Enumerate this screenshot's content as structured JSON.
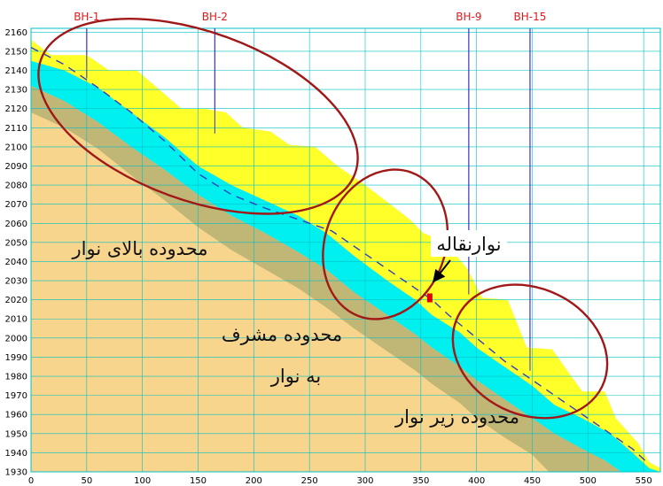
{
  "boreholes": [
    {
      "label": "BH-1",
      "x": 50
    },
    {
      "label": "BH-2",
      "x": 165
    },
    {
      "label": "BH-9",
      "x": 393
    },
    {
      "label": "BH-15",
      "x": 448
    }
  ],
  "axes": {
    "x_ticks": [
      "0",
      "50",
      "100",
      "150",
      "200",
      "250",
      "300",
      "350",
      "400",
      "450",
      "500",
      "550"
    ],
    "y_ticks": [
      "1930",
      "1940",
      "1950",
      "1960",
      "1970",
      "1980",
      "1990",
      "2000",
      "2010",
      "2020",
      "2030",
      "2040",
      "2050",
      "2060",
      "2070",
      "2080",
      "2090",
      "2100",
      "2110",
      "2120",
      "2130",
      "2140",
      "2150",
      "2160"
    ],
    "xlim": [
      0,
      565
    ],
    "ylim": [
      1930,
      2162
    ]
  },
  "labels": {
    "zone_above": "محدوده بالای نوار",
    "zone_overlook_1": "محدوده مشرف",
    "zone_overlook_2": "به نوار",
    "zone_below": "محدوده زیر نوار",
    "conveyor": "نوارنقاله"
  },
  "colors": {
    "ground": "#f8d58c",
    "rock": "#c0b676",
    "weathered": "#00f0f0",
    "fill": "#ffff2a",
    "ellipse": "#a01818",
    "profile": "#3040c0",
    "borehole": "#3b2fd6",
    "marker": "#e00000",
    "grid": "#00c0c8"
  },
  "profile": {
    "top_surface": [
      [
        0,
        2156
      ],
      [
        18,
        2148
      ],
      [
        50,
        2148
      ],
      [
        70,
        2140
      ],
      [
        95,
        2140
      ],
      [
        135,
        2120
      ],
      [
        155,
        2120
      ],
      [
        175,
        2118
      ],
      [
        190,
        2110
      ],
      [
        215,
        2108
      ],
      [
        232,
        2101
      ],
      [
        255,
        2100
      ],
      [
        275,
        2090
      ],
      [
        300,
        2080
      ],
      [
        318,
        2072
      ],
      [
        340,
        2062
      ],
      [
        352,
        2055
      ],
      [
        372,
        2050
      ],
      [
        392,
        2036
      ],
      [
        405,
        2021
      ],
      [
        428,
        2020
      ],
      [
        445,
        1995
      ],
      [
        468,
        1994
      ],
      [
        485,
        1980
      ],
      [
        495,
        1972
      ],
      [
        515,
        1972
      ],
      [
        525,
        1958
      ],
      [
        545,
        1945
      ],
      [
        555,
        1935
      ],
      [
        565,
        1932
      ]
    ],
    "fill_bottom": [
      [
        0,
        2145
      ],
      [
        30,
        2140
      ],
      [
        60,
        2131
      ],
      [
        90,
        2118
      ],
      [
        120,
        2105
      ],
      [
        150,
        2090
      ],
      [
        180,
        2080
      ],
      [
        210,
        2072
      ],
      [
        240,
        2064
      ],
      [
        265,
        2055
      ],
      [
        290,
        2043
      ],
      [
        320,
        2030
      ],
      [
        345,
        2020
      ],
      [
        360,
        2012
      ],
      [
        385,
        2003
      ],
      [
        400,
        1995
      ],
      [
        425,
        1985
      ],
      [
        450,
        1975
      ],
      [
        470,
        1965
      ],
      [
        495,
        1958
      ],
      [
        520,
        1950
      ],
      [
        540,
        1940
      ],
      [
        555,
        1932
      ],
      [
        565,
        1930
      ]
    ],
    "weathered_bottom": [
      [
        0,
        2132
      ],
      [
        30,
        2124
      ],
      [
        60,
        2113
      ],
      [
        90,
        2100
      ],
      [
        120,
        2088
      ],
      [
        150,
        2075
      ],
      [
        180,
        2064
      ],
      [
        210,
        2055
      ],
      [
        240,
        2045
      ],
      [
        265,
        2036
      ],
      [
        290,
        2024
      ],
      [
        320,
        2012
      ],
      [
        345,
        2002
      ],
      [
        360,
        1995
      ],
      [
        385,
        1985
      ],
      [
        400,
        1978
      ],
      [
        425,
        1968
      ],
      [
        450,
        1958
      ],
      [
        470,
        1950
      ],
      [
        495,
        1942
      ],
      [
        515,
        1936
      ],
      [
        530,
        1930
      ]
    ],
    "rock_bottom": [
      [
        0,
        2118
      ],
      [
        30,
        2110
      ],
      [
        60,
        2099
      ],
      [
        90,
        2085
      ],
      [
        120,
        2072
      ],
      [
        150,
        2058
      ],
      [
        180,
        2046
      ],
      [
        210,
        2036
      ],
      [
        240,
        2026
      ],
      [
        265,
        2016
      ],
      [
        290,
        2005
      ],
      [
        320,
        1993
      ],
      [
        345,
        1983
      ],
      [
        360,
        1976
      ],
      [
        385,
        1966
      ],
      [
        400,
        1958
      ],
      [
        425,
        1948
      ],
      [
        450,
        1939
      ],
      [
        465,
        1930
      ]
    ],
    "design_line": [
      [
        0,
        2152
      ],
      [
        30,
        2143
      ],
      [
        60,
        2131
      ],
      [
        90,
        2118
      ],
      [
        120,
        2103
      ],
      [
        150,
        2086
      ],
      [
        180,
        2075
      ],
      [
        210,
        2068
      ],
      [
        240,
        2062
      ],
      [
        270,
        2056
      ],
      [
        300,
        2044
      ],
      [
        330,
        2032
      ],
      [
        360,
        2020
      ],
      [
        375,
        2012
      ],
      [
        400,
        2000
      ],
      [
        425,
        1988
      ],
      [
        450,
        1978
      ],
      [
        475,
        1968
      ],
      [
        500,
        1958
      ],
      [
        520,
        1950
      ],
      [
        540,
        1942
      ],
      [
        555,
        1934
      ]
    ]
  },
  "ellipses": [
    {
      "cx": 150,
      "cy": 2116,
      "rx": 150,
      "ry": 44,
      "rotate": 20
    },
    {
      "cx": 318,
      "cy": 2049,
      "rx": 54,
      "ry": 40,
      "rotate": 20
    },
    {
      "cx": 448,
      "cy": 1993,
      "rx": 72,
      "ry": 33,
      "rotate": 26
    }
  ],
  "conveyor_marker": {
    "x": 358,
    "y": 2021
  }
}
